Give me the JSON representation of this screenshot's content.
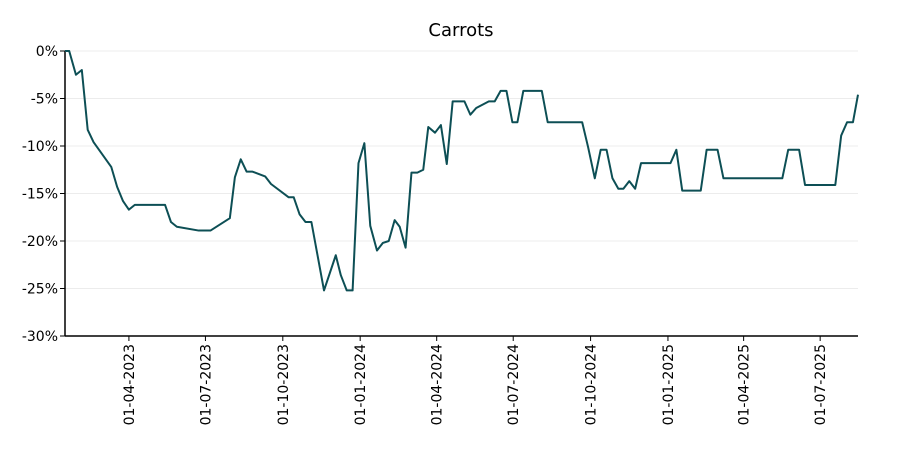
{
  "chart_data": {
    "type": "line",
    "title": "Carrots",
    "x": [
      "2023-01-15",
      "2023-01-20",
      "2023-01-28",
      "2023-02-04",
      "2023-02-11",
      "2023-02-18",
      "2023-03-11",
      "2023-03-18",
      "2023-03-25",
      "2023-04-01",
      "2023-04-08",
      "2023-05-14",
      "2023-05-21",
      "2023-05-28",
      "2023-06-23",
      "2023-07-07",
      "2023-07-30",
      "2023-08-05",
      "2023-08-12",
      "2023-08-19",
      "2023-08-26",
      "2023-09-10",
      "2023-09-17",
      "2023-10-08",
      "2023-10-14",
      "2023-10-21",
      "2023-10-28",
      "2023-11-04",
      "2023-11-19",
      "2023-12-03",
      "2023-12-09",
      "2023-12-16",
      "2023-12-23",
      "2023-12-30",
      "2024-01-06",
      "2024-01-13",
      "2024-01-21",
      "2024-01-28",
      "2024-02-04",
      "2024-02-11",
      "2024-02-17",
      "2024-02-24",
      "2024-03-02",
      "2024-03-09",
      "2024-03-16",
      "2024-03-22",
      "2024-03-30",
      "2024-04-06",
      "2024-04-13",
      "2024-04-20",
      "2024-05-04",
      "2024-05-11",
      "2024-05-18",
      "2024-06-02",
      "2024-06-09",
      "2024-06-16",
      "2024-06-23",
      "2024-06-30",
      "2024-07-06",
      "2024-07-13",
      "2024-08-04",
      "2024-08-11",
      "2024-09-21",
      "2024-09-28",
      "2024-10-06",
      "2024-10-13",
      "2024-10-20",
      "2024-10-27",
      "2024-11-03",
      "2024-11-09",
      "2024-11-16",
      "2024-11-23",
      "2024-11-30",
      "2025-01-04",
      "2025-01-11",
      "2025-01-18",
      "2025-02-09",
      "2025-02-16",
      "2025-03-01",
      "2025-03-08",
      "2025-05-17",
      "2025-05-24",
      "2025-06-06",
      "2025-06-13",
      "2025-07-19",
      "2025-07-26",
      "2025-08-02",
      "2025-08-09",
      "2025-08-15"
    ],
    "series": [
      {
        "name": "Carrots",
        "color": "#0d4f55",
        "values": [
          0,
          0,
          -2.5,
          -2,
          -8.3,
          -9.6,
          -12.2,
          -14.3,
          -15.8,
          -16.7,
          -16.2,
          -16.2,
          -18,
          -18.5,
          -18.9,
          -18.9,
          -17.6,
          -13.3,
          -11.4,
          -12.7,
          -12.7,
          -13.2,
          -14,
          -15.4,
          -15.4,
          -17.2,
          -18,
          -18,
          -25.2,
          -21.5,
          -23.6,
          -25.2,
          -25.2,
          -11.8,
          -9.7,
          -18.4,
          -21,
          -20.2,
          -20,
          -17.8,
          -18.5,
          -20.7,
          -12.8,
          -12.8,
          -12.5,
          -8,
          -8.6,
          -7.8,
          -11.9,
          -5.3,
          -5.3,
          -6.7,
          -6,
          -5.3,
          -5.3,
          -4.2,
          -4.2,
          -7.5,
          -7.5,
          -4.2,
          -4.2,
          -7.5,
          -7.5,
          -10.1,
          -13.4,
          -10.4,
          -10.4,
          -13.4,
          -14.5,
          -14.5,
          -13.7,
          -14.5,
          -11.8,
          -11.8,
          -10.4,
          -14.7,
          -14.7,
          -10.4,
          -10.4,
          -13.4,
          -13.4,
          -10.4,
          -10.4,
          -14.1,
          -14.1,
          -8.9,
          -7.5,
          -7.5,
          -4.6
        ]
      }
    ],
    "xlim": [
      "2023-01-15",
      "2025-08-15"
    ],
    "xticks": [
      {
        "value": "2023-04-01",
        "label": "01-04-2023"
      },
      {
        "value": "2023-07-01",
        "label": "01-07-2023"
      },
      {
        "value": "2023-10-01",
        "label": "01-10-2023"
      },
      {
        "value": "2024-01-01",
        "label": "01-01-2024"
      },
      {
        "value": "2024-04-01",
        "label": "01-04-2024"
      },
      {
        "value": "2024-07-01",
        "label": "01-07-2024"
      },
      {
        "value": "2024-10-01",
        "label": "01-10-2024"
      },
      {
        "value": "2025-01-01",
        "label": "01-01-2025"
      },
      {
        "value": "2025-04-01",
        "label": "01-04-2025"
      },
      {
        "value": "2025-07-01",
        "label": "01-07-2025"
      }
    ],
    "ylim": [
      -30,
      0
    ],
    "yticks": [
      {
        "value": -30,
        "label": "-30%"
      },
      {
        "value": -25,
        "label": "-25%"
      },
      {
        "value": -20,
        "label": "-20%"
      },
      {
        "value": -15,
        "label": "-15%"
      },
      {
        "value": -10,
        "label": "-10%"
      },
      {
        "value": -5,
        "label": "-5%"
      },
      {
        "value": 0,
        "label": "0%"
      }
    ],
    "grid": true
  }
}
